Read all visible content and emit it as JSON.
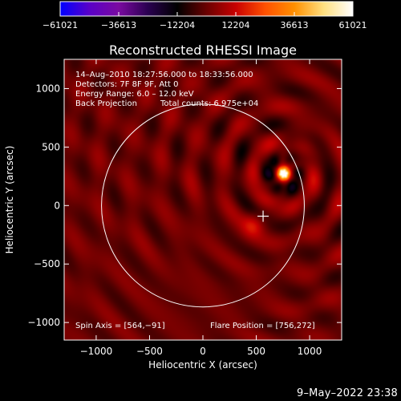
{
  "chart_data": {
    "type": "heatmap",
    "title": "Reconstructed RHESSI Image",
    "xlabel": "Heliocentric X (arcsec)",
    "ylabel": "Heliocentric Y (arcsec)",
    "xlim": [
      -1300,
      1300
    ],
    "ylim": [
      -1150,
      1250
    ],
    "x_ticks": [
      -1000,
      -500,
      0,
      500,
      1000
    ],
    "x_tick_labels": [
      "−1000",
      "−500",
      "0",
      "500",
      "1000"
    ],
    "y_ticks": [
      -1000,
      -500,
      0,
      500,
      1000
    ],
    "y_tick_labels": [
      "−1000",
      "−500",
      "0",
      "500",
      "1000"
    ],
    "grid": false,
    "colorbar": {
      "min": -61021,
      "max": 61021,
      "ticks": [
        -61021,
        -36613,
        -12204,
        12204,
        36613,
        61021
      ],
      "tick_labels": [
        "−61021",
        "−36613",
        "−12204",
        "12204",
        "36613",
        "61021"
      ],
      "colors": [
        "#0000ff",
        "#5a00c8",
        "#7a0aa0",
        "#2a0050",
        "#000000",
        "#6a0000",
        "#c80000",
        "#ff5000",
        "#ff9000",
        "#ffe080",
        "#ffffff"
      ]
    },
    "annotations": [
      "14–Aug–2010 18:27:56.000 to 18:33:56.000",
      "Detectors: 7F 8F 9F, Att 0",
      "Energy Range: 6.0 – 12.0 keV",
      "Back Projection",
      "Total counts: 6.975e+04"
    ],
    "spin_axis_label": "Spin Axis = [564,−91]",
    "flare_position_label": "Flare Position = [756,272]",
    "spin_axis": [
      564,
      -91
    ],
    "flare_position": [
      756,
      272
    ],
    "solar_disk": {
      "center": [
        0,
        0
      ],
      "radius_arcsec": 950
    },
    "source_peak_fraction": 1.0
  },
  "footer": {
    "date": "9–May–2022 23:38"
  },
  "colors": {
    "background": "#000000",
    "foreground": "#ffffff"
  }
}
